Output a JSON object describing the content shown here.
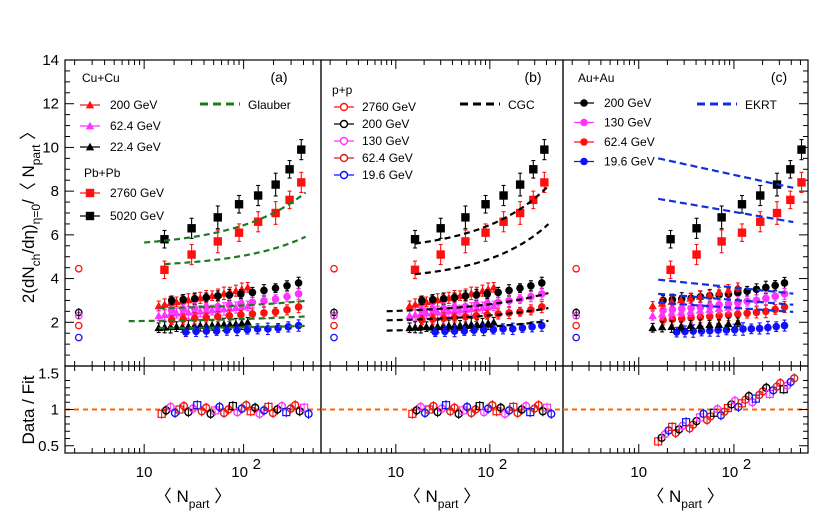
{
  "chart_data": [
    {
      "type": "scatter",
      "panel": "(a)",
      "xlabel": "〈 N_part 〉",
      "ylabel": "2(dN_ch/dη)_η=0/〈 N_part 〉",
      "xscale": "log",
      "xlim": [
        1.6,
        600
      ],
      "ylim": [
        0,
        14
      ],
      "x_ticks": [
        "10",
        "10^2"
      ],
      "y_ticks": [
        "2",
        "4",
        "6",
        "8",
        "10",
        "12",
        "14"
      ],
      "legend_groups": [
        "Cu+Cu",
        "Pb+Pb"
      ],
      "fit_name": "Glauber",
      "fit_color": "#1d7a1d",
      "series": [
        {
          "name": "200 GeV",
          "color": "#ff1010",
          "marker": "triangle",
          "x": [
            14,
            19,
            26,
            35,
            46,
            60,
            76,
            94,
            110
          ],
          "y": [
            2.75,
            2.9,
            3.0,
            3.1,
            3.2,
            3.3,
            3.4,
            3.5,
            3.6
          ]
        },
        {
          "name": "62.4 GeV",
          "color": "#ff33ff",
          "marker": "triangle",
          "x": [
            14,
            19,
            26,
            35,
            46,
            60,
            76,
            94,
            110
          ],
          "y": [
            2.3,
            2.4,
            2.45,
            2.5,
            2.55,
            2.6,
            2.65,
            2.7,
            2.75
          ]
        },
        {
          "name": "22.4 GeV",
          "color": "#000000",
          "marker": "triangle",
          "x": [
            14,
            19,
            26,
            35,
            46,
            60,
            76,
            94,
            110
          ],
          "y": [
            1.75,
            1.8,
            1.8,
            1.85,
            1.85,
            1.9,
            1.9,
            1.95,
            2.0
          ]
        },
        {
          "name": "2760 GeV",
          "color": "#ff1010",
          "marker": "square",
          "x": [
            16,
            30,
            55,
            90,
            140,
            210,
            290,
            380
          ],
          "y": [
            4.4,
            5.1,
            5.7,
            6.1,
            6.6,
            7.0,
            7.6,
            8.4
          ]
        },
        {
          "name": "5020 GeV",
          "color": "#000000",
          "marker": "square",
          "x": [
            16,
            30,
            55,
            90,
            140,
            210,
            290,
            380
          ],
          "y": [
            5.8,
            6.3,
            6.8,
            7.4,
            7.8,
            8.3,
            9.0,
            9.9
          ]
        }
      ],
      "pp_points": [
        {
          "energy": "2760 GeV",
          "color": "#ff1010",
          "y": 4.45
        },
        {
          "energy": "200 GeV",
          "color": "#000000",
          "y": 2.45
        },
        {
          "energy": "130 GeV",
          "color": "#ff33ff",
          "y": 2.3
        },
        {
          "energy": "62.4 GeV",
          "color": "#ff1010",
          "y": 1.85
        },
        {
          "energy": "19.6 GeV",
          "color": "#1010ff",
          "y": 1.3
        }
      ]
    },
    {
      "type": "scatter",
      "panel": "(b)",
      "xlabel": "〈 N_part 〉",
      "xscale": "log",
      "legend_groups": [
        "p+p"
      ],
      "fit_name": "CGC",
      "fit_color": "#000000",
      "series": [
        {
          "name": "2760 GeV",
          "color": "#ff1010",
          "marker": "open-circle"
        },
        {
          "name": "200 GeV",
          "color": "#000000",
          "marker": "open-circle"
        },
        {
          "name": "130 GeV",
          "color": "#ff33ff",
          "marker": "open-circle"
        },
        {
          "name": "62.4 GeV",
          "color": "#cc2222",
          "marker": "open-circle"
        },
        {
          "name": "19.6 GeV",
          "color": "#1010ff",
          "marker": "open-circle"
        }
      ]
    },
    {
      "type": "scatter",
      "panel": "(c)",
      "xlabel": "〈 N_part 〉",
      "xscale": "log",
      "legend_groups": [
        "Au+Au"
      ],
      "fit_name": "EKRT",
      "fit_color": "#1030e0",
      "series": [
        {
          "name": "200 GeV",
          "color": "#000000",
          "marker": "circle",
          "x": [
            18,
            25,
            35,
            50,
            70,
            95,
            130,
            170,
            220,
            280,
            340
          ],
          "y": [
            3.0,
            3.05,
            3.1,
            3.2,
            3.25,
            3.3,
            3.4,
            3.5,
            3.6,
            3.7,
            3.8
          ]
        },
        {
          "name": "130 GeV",
          "color": "#ff33ff",
          "marker": "circle",
          "x": [
            18,
            25,
            35,
            50,
            70,
            95,
            130,
            170,
            220,
            280,
            340
          ],
          "y": [
            2.55,
            2.6,
            2.65,
            2.7,
            2.8,
            2.85,
            2.95,
            3.0,
            3.1,
            3.2,
            3.3
          ]
        },
        {
          "name": "62.4 GeV",
          "color": "#ff1010",
          "marker": "circle",
          "x": [
            18,
            25,
            35,
            50,
            70,
            95,
            130,
            170,
            220,
            280,
            340
          ],
          "y": [
            2.1,
            2.15,
            2.2,
            2.25,
            2.3,
            2.35,
            2.4,
            2.45,
            2.5,
            2.6,
            2.7
          ]
        },
        {
          "name": "19.6 GeV",
          "color": "#1010ff",
          "marker": "circle",
          "x": [
            25,
            35,
            50,
            70,
            95,
            130,
            170,
            220,
            280,
            340
          ],
          "y": [
            1.55,
            1.6,
            1.6,
            1.65,
            1.65,
            1.7,
            1.7,
            1.75,
            1.8,
            1.85
          ]
        }
      ]
    }
  ],
  "ratio_panel": {
    "ylabel": "Data / Fit",
    "ylim": [
      0.4,
      1.6
    ],
    "y_ticks": [
      "0.5",
      "1",
      "1.5"
    ],
    "reference": 1.0,
    "reference_color": "#ff6600"
  },
  "colors": {
    "red": "#ff1010",
    "magenta": "#ff33ff",
    "black": "#000000",
    "blue": "#1010ff",
    "green": "#1d7a1d"
  }
}
